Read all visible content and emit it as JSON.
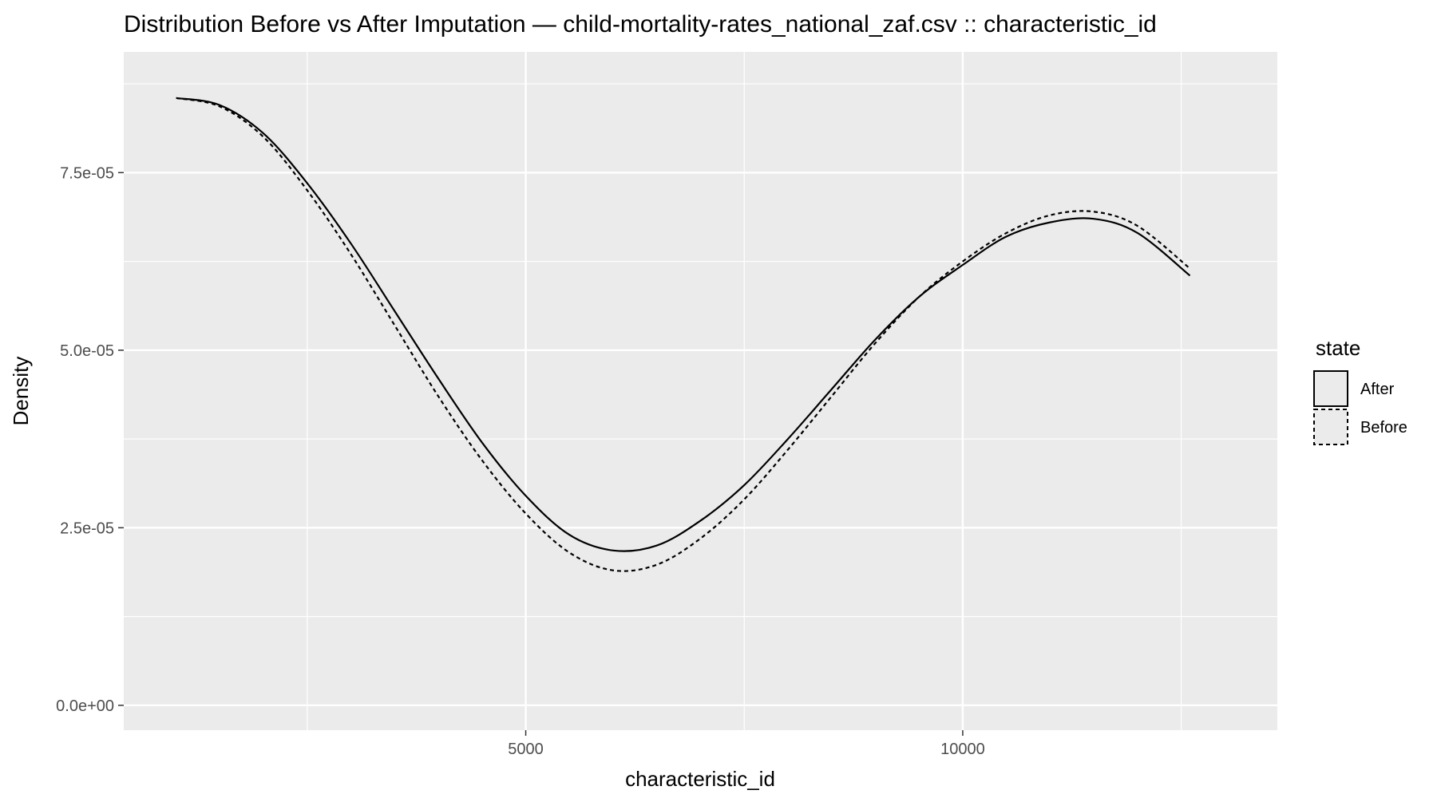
{
  "chart_data": {
    "type": "line",
    "title": "Distribution Before vs After Imputation — child-mortality-rates_national_zaf.csv :: characteristic_id",
    "xlabel": "characteristic_id",
    "ylabel": "Density",
    "xlim": [
      400,
      13600
    ],
    "ylim": [
      -3.5e-06,
      9.2e-05
    ],
    "x_ticks": [
      5000,
      10000
    ],
    "x_tick_labels": [
      "5000",
      "10000"
    ],
    "x_minor_ticks": [
      2500,
      7500,
      12500
    ],
    "y_ticks": [
      0,
      2.5e-05,
      5e-05,
      7.5e-05
    ],
    "y_tick_labels": [
      "0.0e+00",
      "2.5e-05",
      "5.0e-05",
      "7.5e-05"
    ],
    "y_minor_ticks": [
      1.25e-05,
      3.75e-05,
      6.25e-05,
      8.75e-05
    ],
    "grid": true,
    "legend": {
      "title": "state",
      "position": "right",
      "entries": [
        "After",
        "Before"
      ]
    },
    "colors": {
      "panel": "#EBEBEB",
      "grid": "#FFFFFF",
      "line": "#000000",
      "axis_text": "#4D4D4D",
      "text": "#000000"
    },
    "series": [
      {
        "name": "After",
        "line_style": "solid",
        "x": [
          1000,
          1500,
          2000,
          2500,
          3000,
          3500,
          4000,
          4500,
          5000,
          5500,
          6000,
          6500,
          7000,
          7500,
          8000,
          8500,
          9000,
          9500,
          10000,
          10500,
          11000,
          11500,
          12000,
          12600
        ],
        "values": [
          8.55e-05,
          8.45e-05,
          8.05e-05,
          7.35e-05,
          6.5e-05,
          5.55e-05,
          4.6e-05,
          3.7e-05,
          2.95e-05,
          2.4e-05,
          2.18e-05,
          2.25e-05,
          2.6e-05,
          3.1e-05,
          3.75e-05,
          4.45e-05,
          5.15e-05,
          5.75e-05,
          6.2e-05,
          6.6e-05,
          6.8e-05,
          6.85e-05,
          6.65e-05,
          6.05e-05
        ]
      },
      {
        "name": "Before",
        "line_style": "dashed",
        "x": [
          1000,
          1500,
          2000,
          2500,
          3000,
          3500,
          4000,
          4500,
          5000,
          5500,
          6000,
          6500,
          7000,
          7500,
          8000,
          8500,
          9000,
          9500,
          10000,
          10500,
          11000,
          11500,
          12000,
          12600
        ],
        "values": [
          8.55e-05,
          8.43e-05,
          8e-05,
          7.25e-05,
          6.35e-05,
          5.35e-05,
          4.35e-05,
          3.45e-05,
          2.7e-05,
          2.15e-05,
          1.9e-05,
          1.98e-05,
          2.35e-05,
          2.9e-05,
          3.6e-05,
          4.35e-05,
          5.1e-05,
          5.75e-05,
          6.25e-05,
          6.65e-05,
          6.9e-05,
          6.95e-05,
          6.75e-05,
          6.15e-05
        ]
      }
    ]
  }
}
